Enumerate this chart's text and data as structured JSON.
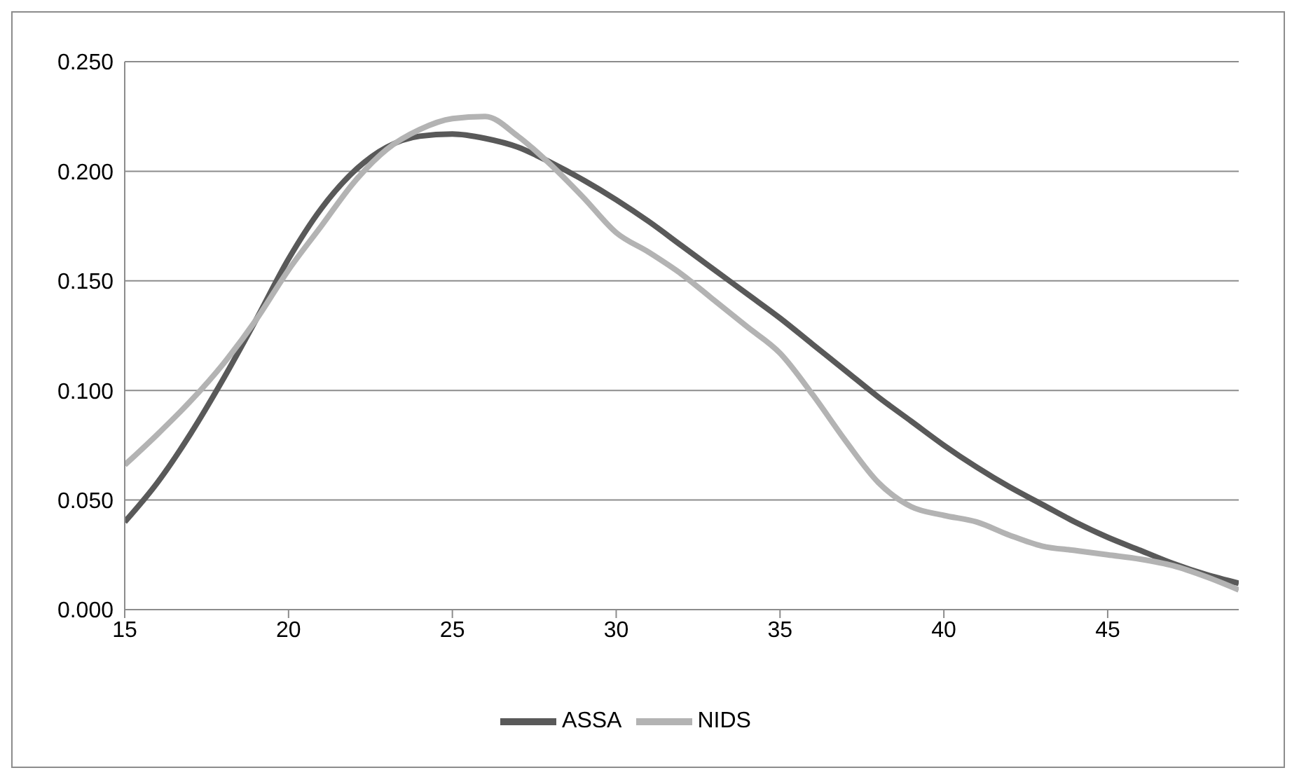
{
  "chart_data": {
    "type": "line",
    "x": [
      15,
      16,
      17,
      18,
      19,
      20,
      21,
      22,
      23,
      24,
      25,
      26,
      27,
      28,
      29,
      30,
      31,
      32,
      33,
      34,
      35,
      36,
      37,
      38,
      39,
      40,
      41,
      42,
      43,
      44,
      45,
      46,
      47,
      48,
      49
    ],
    "series": [
      {
        "name": "ASSA",
        "color": "#595959",
        "values": [
          0.04,
          0.058,
          0.08,
          0.105,
          0.132,
          0.16,
          0.183,
          0.2,
          0.211,
          0.216,
          0.217,
          0.215,
          0.211,
          0.204,
          0.196,
          0.187,
          0.177,
          0.166,
          0.155,
          0.144,
          0.133,
          0.121,
          0.109,
          0.097,
          0.086,
          0.075,
          0.065,
          0.056,
          0.048,
          0.04,
          0.033,
          0.027,
          0.021,
          0.016,
          0.012
        ]
      },
      {
        "name": "NIDS",
        "color": "#b3b3b3",
        "values": [
          0.066,
          0.08,
          0.095,
          0.112,
          0.132,
          0.155,
          0.175,
          0.195,
          0.21,
          0.219,
          0.224,
          0.225,
          0.216,
          0.203,
          0.188,
          0.172,
          0.163,
          0.153,
          0.141,
          0.129,
          0.117,
          0.098,
          0.077,
          0.058,
          0.047,
          0.043,
          0.04,
          0.034,
          0.029,
          0.027,
          0.025,
          0.023,
          0.02,
          0.015,
          0.009
        ]
      }
    ],
    "xlim": [
      15,
      49
    ],
    "xticks": [
      15,
      20,
      25,
      30,
      35,
      40,
      45
    ],
    "ylim": [
      0,
      0.25
    ],
    "yticks": [
      {
        "value": 0,
        "label": "0.000"
      },
      {
        "value": 0.05,
        "label": "0.050"
      },
      {
        "value": 0.1,
        "label": "0.100"
      },
      {
        "value": 0.15,
        "label": "0.150"
      },
      {
        "value": 0.2,
        "label": "0.200"
      },
      {
        "value": 0.25,
        "label": "0.250"
      }
    ],
    "grid": "y",
    "legend": "bottom",
    "marker": "none",
    "line_style": "solid"
  }
}
